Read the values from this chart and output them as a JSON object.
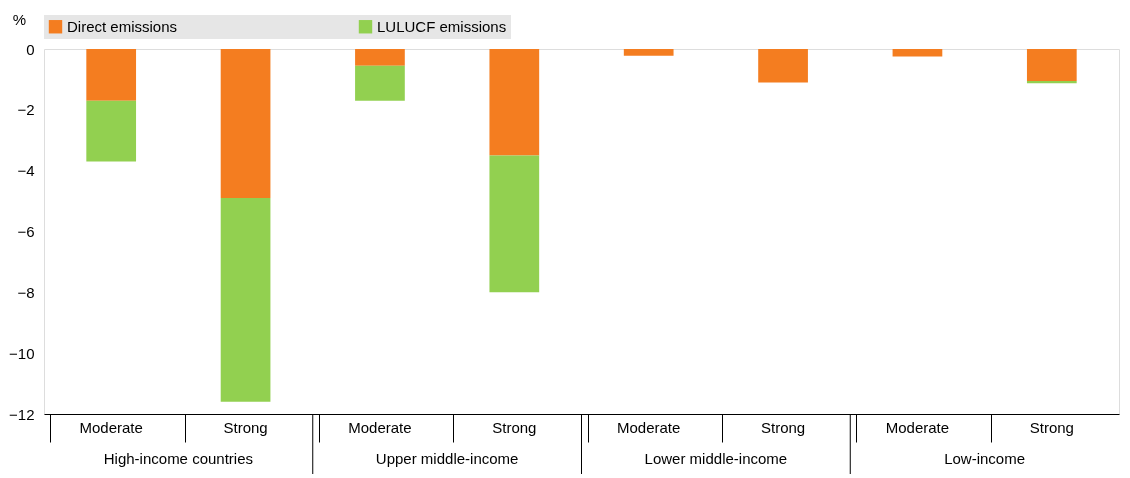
{
  "chart_data": {
    "type": "bar",
    "stacked": true,
    "ylabel": "%",
    "categories": [
      "Moderate",
      "Strong",
      "Moderate",
      "Strong",
      "Moderate",
      "Strong",
      "Moderate",
      "Strong"
    ],
    "series": [
      {
        "name": "Direct emissions",
        "color": "#f47d20",
        "values": [
          -1.7,
          -4.9,
          -0.55,
          -3.5,
          -0.22,
          -1.1,
          -0.25,
          -1.05
        ]
      },
      {
        "name": "LULUCF emissions",
        "color": "#92d050",
        "values": [
          -2.0,
          -6.7,
          -1.15,
          -4.5,
          0,
          0,
          0,
          -0.08
        ]
      }
    ],
    "annotations": [
      "High-income countries",
      "Upper middle-income",
      "Lower middle-income",
      "Low-income"
    ],
    "ylim": [
      -12,
      0
    ],
    "yticks": [
      0,
      -2,
      -4,
      -6,
      -8,
      -10,
      -12
    ],
    "grid": false,
    "legend": "top"
  }
}
